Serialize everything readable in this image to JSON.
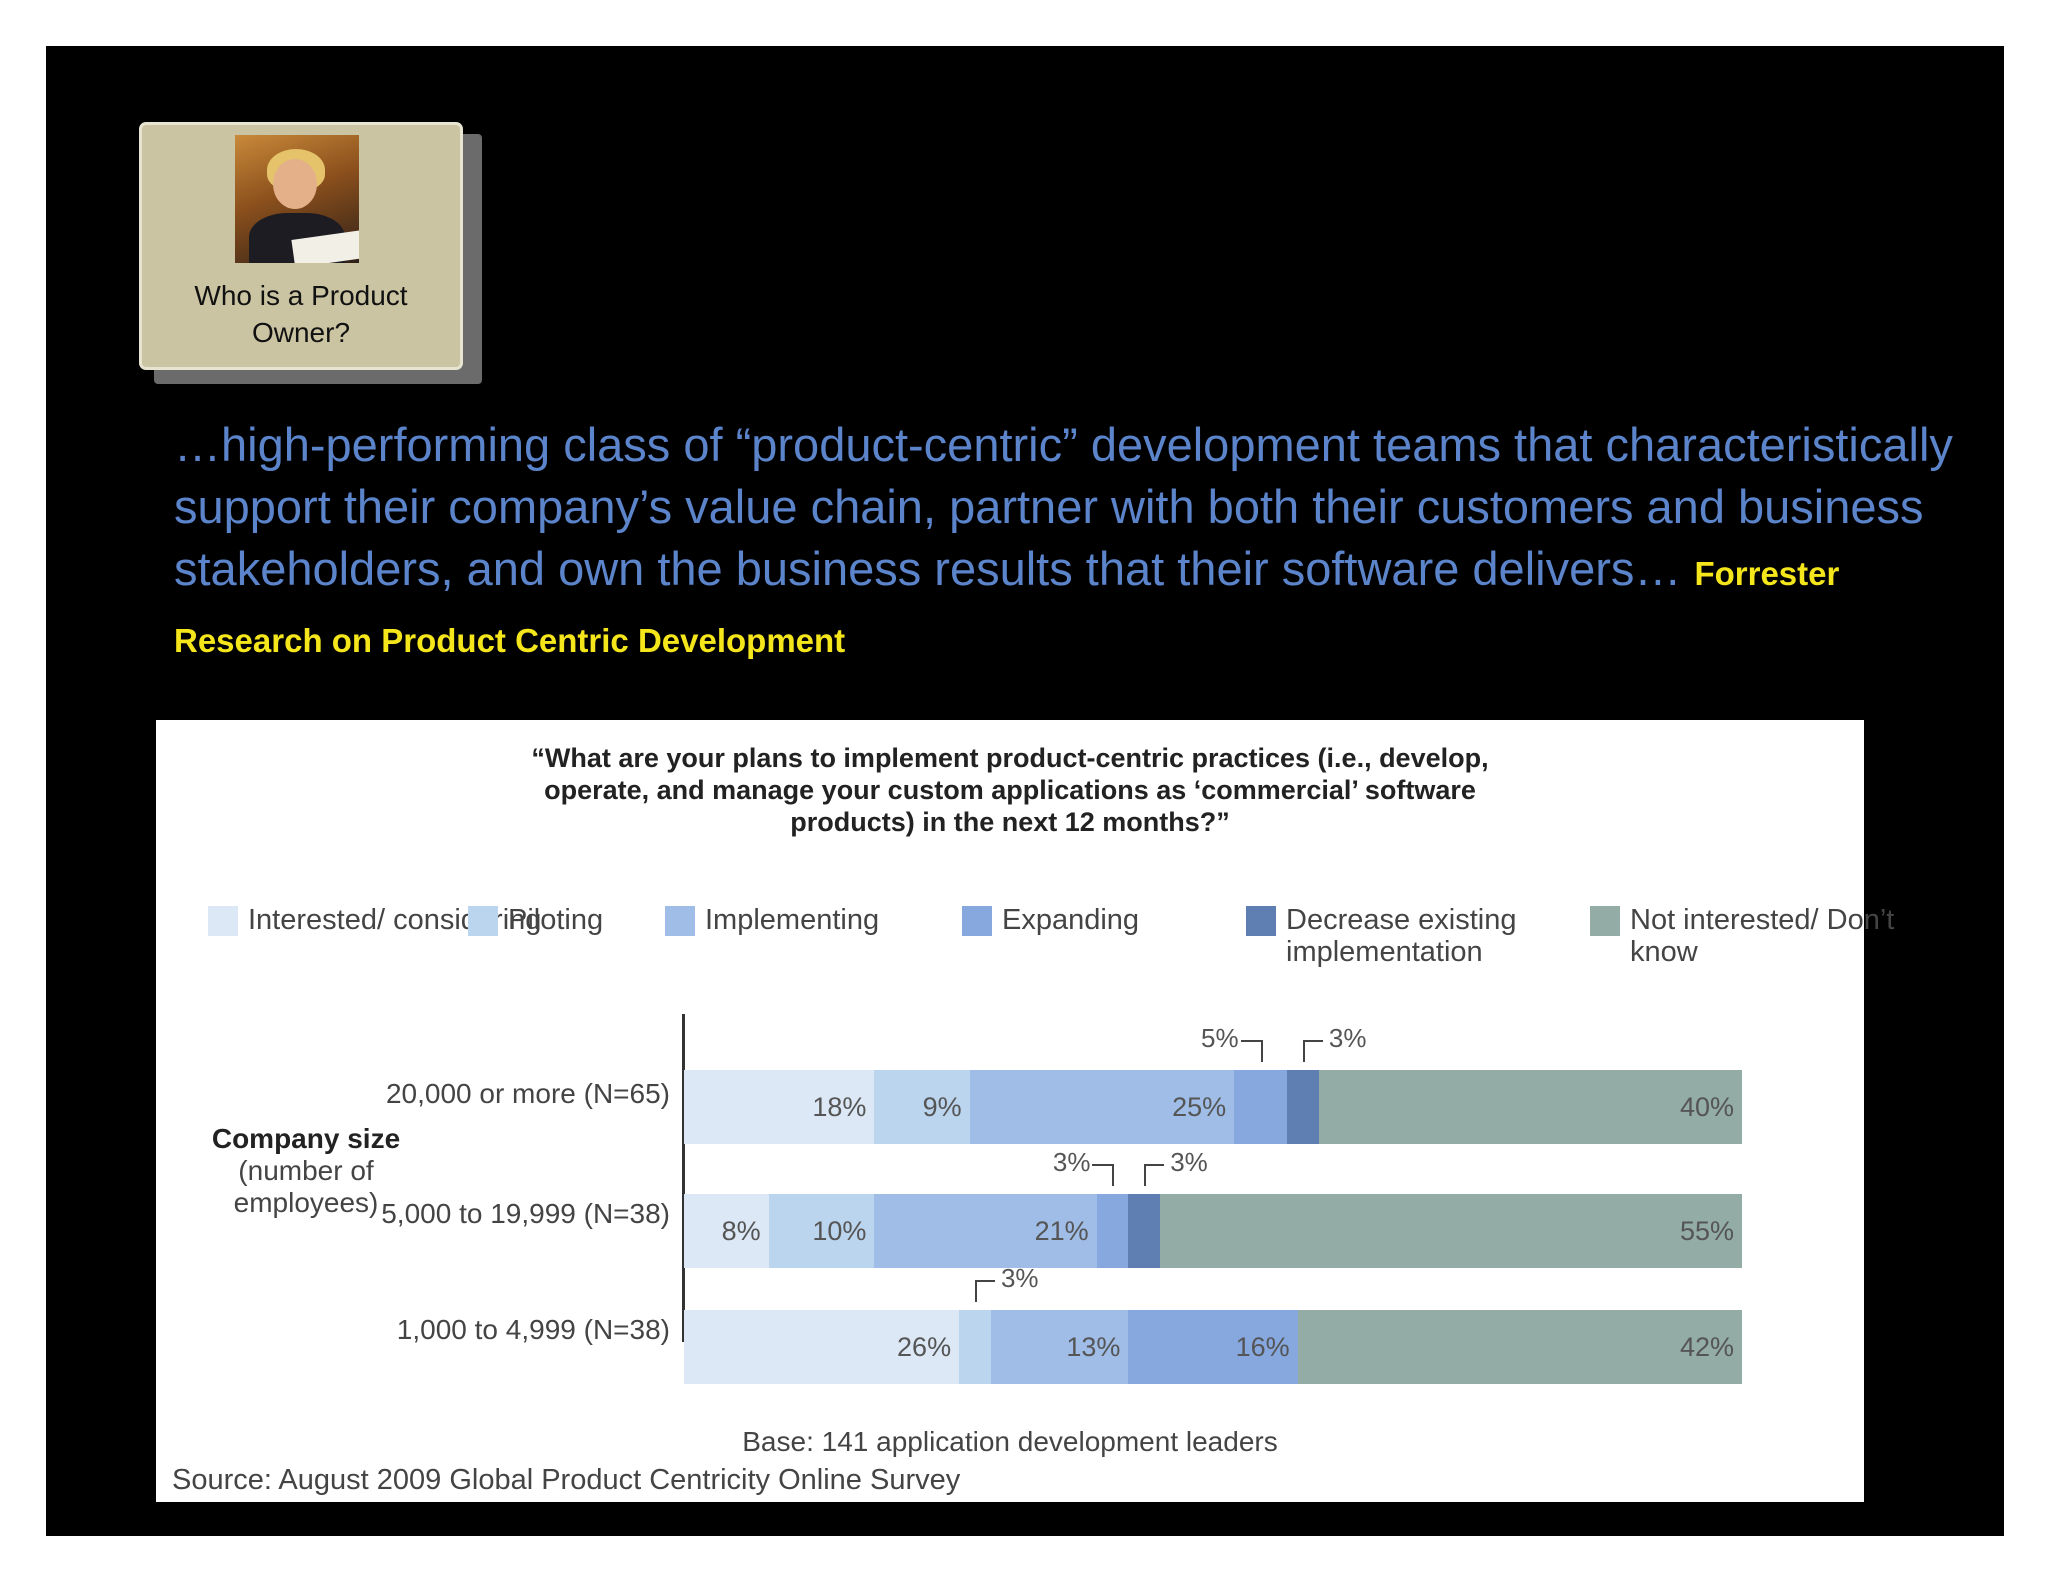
{
  "card": {
    "label": "Who is a Product Owner?"
  },
  "quote": {
    "text": "…high-performing class of “product-centric” development teams that characteristically support their company’s value chain, partner with both their customers and business stakeholders, and own the business results that their software delivers…",
    "source": "Forrester Research on Product Centric Development"
  },
  "chart_data": {
    "type": "bar",
    "orientation": "horizontal",
    "stacked": true,
    "title": "“What are your plans to implement product-centric practices (i.e., develop, operate, and manage your custom applications as ‘commercial’ software products) in the next 12 months?”",
    "group_label": {
      "title": "Company size",
      "subtitle": "(number of employees)"
    },
    "categories": [
      "20,000 or more (N=65)",
      "5,000 to 19,999 (N=38)",
      "1,000 to 4,999 (N=38)"
    ],
    "series": [
      {
        "name": "Interested/ considering",
        "color": "#dce8f5",
        "values": [
          18,
          8,
          26
        ]
      },
      {
        "name": "Piloting",
        "color": "#bcd5ee",
        "values": [
          9,
          10,
          3
        ]
      },
      {
        "name": "Implementing",
        "color": "#9fbde6",
        "values": [
          25,
          21,
          13
        ]
      },
      {
        "name": "Expanding",
        "color": "#86a8de",
        "values": [
          5,
          3,
          16
        ]
      },
      {
        "name": "Decrease existing implementation",
        "color": "#5f7fb2",
        "values": [
          3,
          3,
          0
        ]
      },
      {
        "name": "Not interested/ Don’t know",
        "color": "#93aca6",
        "values": [
          40,
          55,
          42
        ]
      }
    ],
    "legend_placement": "top",
    "base_note": "Base: 141 application development leaders",
    "source": "Source: August 2009 Global Product Centricity Online Survey"
  }
}
